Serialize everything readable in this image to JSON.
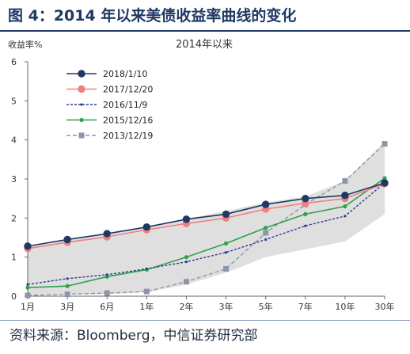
{
  "figure": {
    "title": "图 4：2014 年以来美债收益率曲线的变化",
    "source": "资料来源：Bloomberg，中信证券研究部"
  },
  "chart_data": {
    "type": "line",
    "title": "2014年以来",
    "ylabel": "收益率%",
    "xlabel": "",
    "categories": [
      "1月",
      "3月",
      "6月",
      "1年",
      "2年",
      "3年",
      "5年",
      "7年",
      "10年",
      "30年"
    ],
    "ylim": [
      0,
      6
    ],
    "yticks": [
      0,
      1,
      2,
      3,
      4,
      5,
      6
    ],
    "grid": false,
    "legend_position": "top-left",
    "band": {
      "lower": [
        0.02,
        0.04,
        0.05,
        0.1,
        0.3,
        0.6,
        1.0,
        1.2,
        1.4,
        2.1
      ],
      "upper": [
        1.28,
        1.45,
        1.6,
        1.78,
        1.98,
        2.18,
        2.4,
        2.55,
        2.95,
        3.95
      ],
      "color": "#d9d9d9"
    },
    "series": [
      {
        "name": "2018/1/10",
        "color": "#1f3864",
        "style": "solid",
        "marker": "circle",
        "values": [
          1.28,
          1.45,
          1.6,
          1.77,
          1.97,
          2.1,
          2.35,
          2.5,
          2.58,
          2.9
        ]
      },
      {
        "name": "2017/12/20",
        "color": "#f08080",
        "style": "solid",
        "marker": "circle",
        "values": [
          1.22,
          1.38,
          1.52,
          1.7,
          1.86,
          2.0,
          2.23,
          2.38,
          2.5,
          2.88
        ]
      },
      {
        "name": "2016/11/9",
        "color": "#2e3a9a",
        "style": "dashed",
        "marker": "small-dot",
        "values": [
          0.3,
          0.45,
          0.55,
          0.7,
          0.88,
          1.12,
          1.45,
          1.8,
          2.05,
          2.9
        ]
      },
      {
        "name": "2015/12/16",
        "color": "#2ea24a",
        "style": "solid",
        "marker": "dot",
        "values": [
          0.22,
          0.26,
          0.5,
          0.68,
          1.0,
          1.35,
          1.75,
          2.1,
          2.3,
          3.02
        ]
      },
      {
        "name": "2013/12/19",
        "color": "#8c96a8",
        "style": "dashed",
        "marker": "square",
        "values": [
          0.02,
          0.05,
          0.08,
          0.12,
          0.37,
          0.7,
          1.62,
          2.35,
          2.95,
          3.9
        ]
      }
    ]
  }
}
